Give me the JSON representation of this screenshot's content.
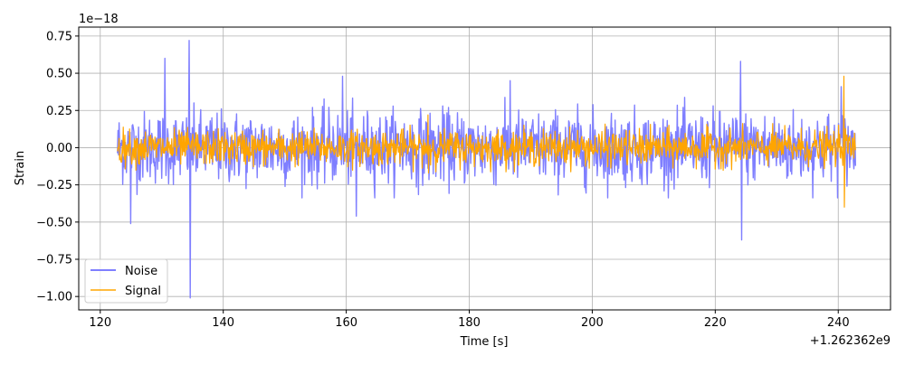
{
  "chart_data": {
    "type": "line",
    "xlabel": "Time [s]",
    "ylabel": "Strain",
    "y_scale_label": "1e−18",
    "x_offset_label": "+1.262362e9",
    "xlim": [
      116.5,
      248.5
    ],
    "ylim": [
      -1.09,
      0.81
    ],
    "x_ticks": [
      120,
      140,
      160,
      180,
      200,
      220,
      240
    ],
    "x_tick_labels": [
      "120",
      "140",
      "160",
      "180",
      "200",
      "220",
      "240"
    ],
    "y_ticks": [
      -1.0,
      -0.75,
      -0.5,
      -0.25,
      0.0,
      0.25,
      0.5,
      0.75
    ],
    "y_tick_labels": [
      "−1.00",
      "−0.75",
      "−0.50",
      "−0.25",
      "0.00",
      "0.25",
      "0.50",
      "0.75"
    ],
    "grid": true,
    "legend_position": "lower-left",
    "x_start": 122.8,
    "x_end": 242.8,
    "series": [
      {
        "name": "Noise",
        "color": "#7f7fff",
        "typical_envelope": [
          -0.27,
          0.27
        ],
        "spikes": [
          {
            "x": 124.9,
            "y": -0.51
          },
          {
            "x": 130.5,
            "y": 0.6
          },
          {
            "x": 134.5,
            "y": 0.72
          },
          {
            "x": 134.6,
            "y": -1.01
          },
          {
            "x": 159.4,
            "y": 0.48
          },
          {
            "x": 161.6,
            "y": -0.46
          },
          {
            "x": 186.7,
            "y": 0.45
          },
          {
            "x": 224.1,
            "y": 0.58
          },
          {
            "x": 224.3,
            "y": -0.62
          },
          {
            "x": 240.5,
            "y": 0.41
          }
        ]
      },
      {
        "name": "Signal",
        "color": "#ffa500",
        "typical_envelope": [
          -0.13,
          0.13
        ],
        "spikes": [
          {
            "x": 173.3,
            "y": 0.22
          },
          {
            "x": 173.4,
            "y": -0.17
          },
          {
            "x": 240.9,
            "y": 0.48
          },
          {
            "x": 241.0,
            "y": -0.4
          }
        ]
      }
    ]
  }
}
